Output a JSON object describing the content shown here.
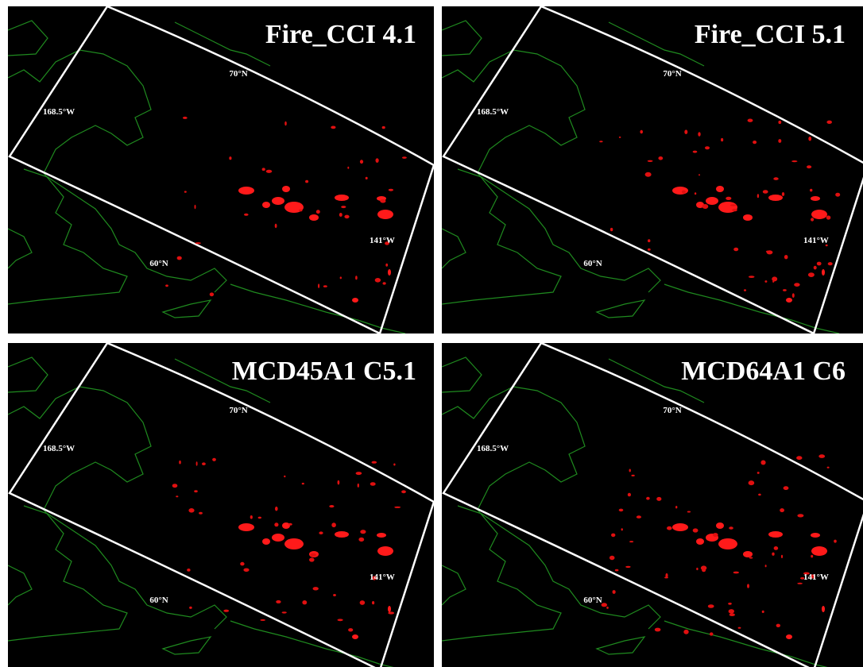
{
  "panels": [
    {
      "title": "Fire_CCI 4.1",
      "labels": [
        "70°N",
        "168.5°W",
        "60°N",
        "141°W"
      ]
    },
    {
      "title": "Fire_CCI 5.1",
      "labels": [
        "70°N",
        "168.5°W",
        "60°N",
        "141°W"
      ]
    },
    {
      "title": "MCD45A1 C5.1",
      "labels": [
        "70°N",
        "168.5°W",
        "60°N",
        "141°W"
      ]
    },
    {
      "title": "MCD64A1 C6",
      "labels": [
        "70°N",
        "168.5°W",
        "60°N",
        "141°W"
      ]
    }
  ]
}
